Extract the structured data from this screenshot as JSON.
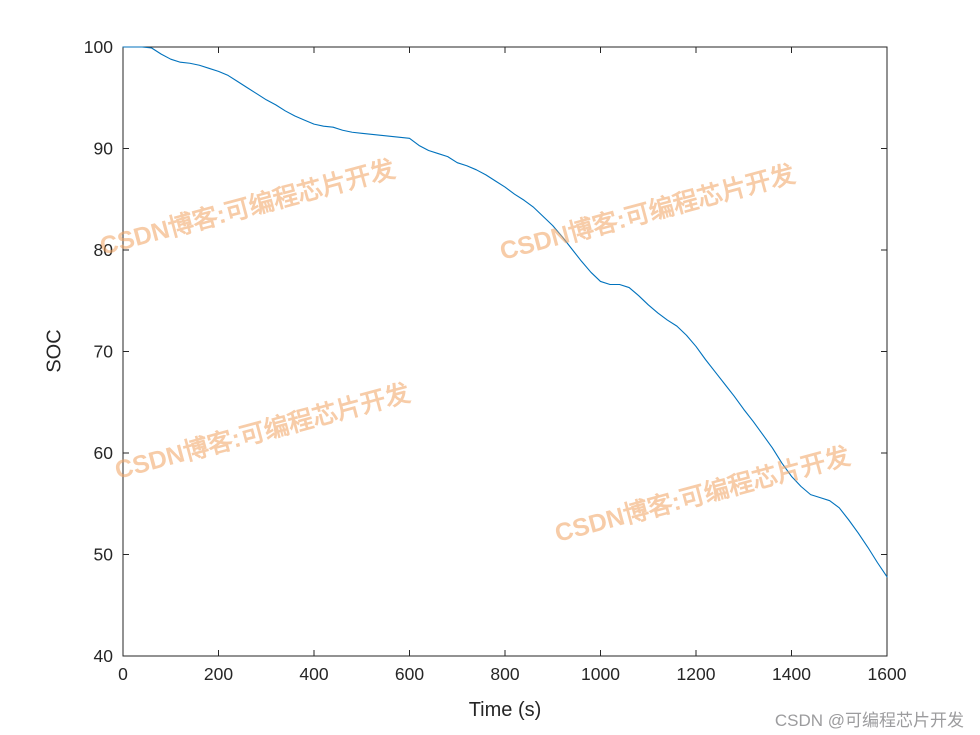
{
  "watermark": {
    "text": "CSDN博客:可编程芯片开发",
    "color": "#F0A361"
  },
  "credit": {
    "text": "CSDN @可编程芯片开发",
    "color": "#9C9C9E"
  },
  "chart_data": {
    "type": "line",
    "title": "",
    "xlabel": "Time (s)",
    "ylabel": "SOC",
    "xlim": [
      0,
      1600
    ],
    "ylim": [
      40,
      100
    ],
    "xticks": [
      0,
      200,
      400,
      600,
      800,
      1000,
      1200,
      1400,
      1600
    ],
    "yticks": [
      40,
      50,
      60,
      70,
      80,
      90,
      100
    ],
    "grid": false,
    "legend": "none",
    "line_color": "#0072BD",
    "axis_color": "#262626",
    "series": [
      {
        "name": "SOC",
        "x": [
          0,
          20,
          40,
          60,
          80,
          100,
          120,
          140,
          160,
          180,
          200,
          220,
          240,
          260,
          280,
          300,
          320,
          340,
          360,
          380,
          400,
          420,
          440,
          460,
          480,
          500,
          520,
          540,
          560,
          580,
          600,
          620,
          640,
          660,
          680,
          700,
          720,
          740,
          760,
          780,
          800,
          820,
          840,
          860,
          880,
          900,
          920,
          940,
          960,
          980,
          1000,
          1020,
          1040,
          1060,
          1080,
          1100,
          1120,
          1140,
          1160,
          1180,
          1200,
          1220,
          1240,
          1260,
          1280,
          1300,
          1320,
          1340,
          1360,
          1380,
          1400,
          1420,
          1440,
          1460,
          1480,
          1500,
          1520,
          1540,
          1560,
          1580,
          1600
        ],
        "y": [
          100,
          100,
          100,
          99.9,
          99.3,
          98.8,
          98.5,
          98.4,
          98.2,
          97.9,
          97.6,
          97.2,
          96.6,
          96.0,
          95.4,
          94.8,
          94.3,
          93.7,
          93.2,
          92.8,
          92.4,
          92.2,
          92.1,
          91.8,
          91.6,
          91.5,
          91.4,
          91.3,
          91.2,
          91.1,
          91.0,
          90.3,
          89.8,
          89.5,
          89.2,
          88.6,
          88.3,
          87.9,
          87.4,
          86.8,
          86.2,
          85.5,
          84.9,
          84.2,
          83.3,
          82.4,
          81.3,
          80.1,
          78.9,
          77.8,
          76.9,
          76.6,
          76.6,
          76.3,
          75.5,
          74.6,
          73.8,
          73.1,
          72.5,
          71.6,
          70.5,
          69.2,
          68.0,
          66.8,
          65.6,
          64.3,
          63.1,
          61.8,
          60.5,
          59.0,
          57.7,
          56.7,
          55.9,
          55.6,
          55.3,
          54.6,
          53.4,
          52.1,
          50.7,
          49.2,
          47.8
        ]
      }
    ]
  }
}
